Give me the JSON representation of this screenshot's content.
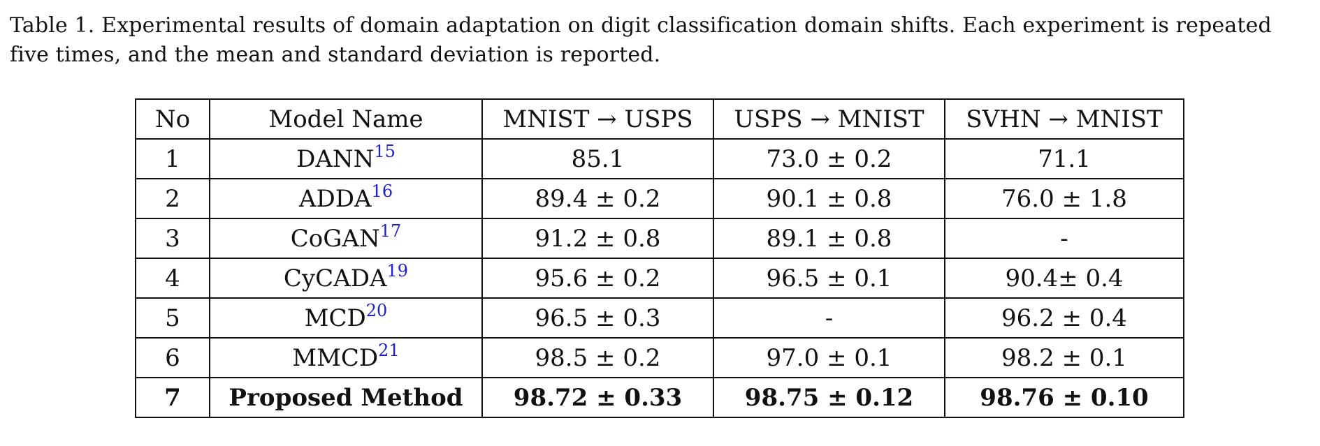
{
  "caption": "Table 1. Experimental results of domain adaptation on digit classification domain shifts.  Each experiment is repeated five times, and the mean and standard deviation is reported.",
  "table": {
    "headers": [
      "No",
      "Model Name",
      "MNIST → USPS",
      "USPS → MNIST",
      "SVHN → MNIST"
    ],
    "rows": [
      {
        "no": "1",
        "model": "DANN",
        "ref": "15",
        "mnist_usps": "85.1",
        "usps_mnist": "73.0 ± 0.2",
        "svhn_mnist": "71.1"
      },
      {
        "no": "2",
        "model": "ADDA",
        "ref": "16",
        "mnist_usps": "89.4 ± 0.2",
        "usps_mnist": "90.1 ± 0.8",
        "svhn_mnist": "76.0 ± 1.8"
      },
      {
        "no": "3",
        "model": "CoGAN",
        "ref": "17",
        "mnist_usps": "91.2 ± 0.8",
        "usps_mnist": "89.1 ± 0.8",
        "svhn_mnist": "-"
      },
      {
        "no": "4",
        "model": "CyCADA",
        "ref": "19",
        "mnist_usps": "95.6 ± 0.2",
        "usps_mnist": "96.5 ± 0.1",
        "svhn_mnist": "90.4± 0.4"
      },
      {
        "no": "5",
        "model": "MCD",
        "ref": "20",
        "mnist_usps": "96.5 ± 0.3",
        "usps_mnist": "-",
        "svhn_mnist": "96.2 ± 0.4"
      },
      {
        "no": "6",
        "model": "MMCD",
        "ref": "21",
        "mnist_usps": "98.5 ± 0.2",
        "usps_mnist": "97.0 ± 0.1",
        "svhn_mnist": "98.2 ± 0.1"
      },
      {
        "no": "7",
        "model": "Proposed Method",
        "ref": "",
        "mnist_usps": "98.72 ± 0.33",
        "usps_mnist": "98.75 ± 0.12",
        "svhn_mnist": "98.76 ± 0.10"
      }
    ]
  },
  "colors": {
    "text": "#111111",
    "citation": "#1f1fd6",
    "background": "#ffffff"
  }
}
